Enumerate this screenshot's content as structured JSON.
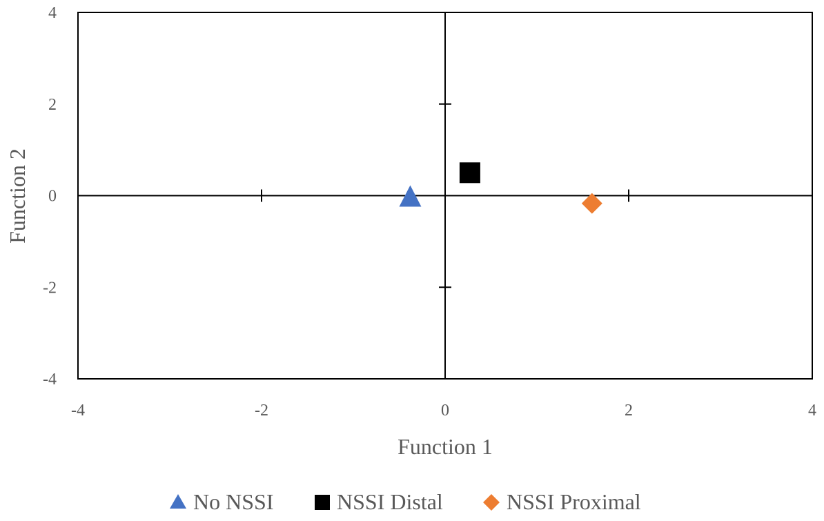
{
  "chart_data": {
    "type": "scatter",
    "xlabel": "Function 1",
    "ylabel": "Function 2",
    "xlim": [
      -4,
      4
    ],
    "ylim": [
      -4,
      4
    ],
    "x_ticks": [
      "-4",
      "-2",
      "0",
      "2",
      "4"
    ],
    "y_ticks": [
      "4",
      "2",
      "0",
      "-2",
      "-4"
    ],
    "grid": false,
    "legend_position": "bottom",
    "series": [
      {
        "name": "No NSSI",
        "marker": "triangle",
        "color": "#4472C4",
        "x": -0.38,
        "y": -0.03
      },
      {
        "name": "NSSI Distal",
        "marker": "square",
        "color": "#000000",
        "x": 0.27,
        "y": 0.5
      },
      {
        "name": "NSSI Proximal",
        "marker": "diamond",
        "color": "#ED7D31",
        "x": 1.6,
        "y": -0.17
      }
    ]
  }
}
